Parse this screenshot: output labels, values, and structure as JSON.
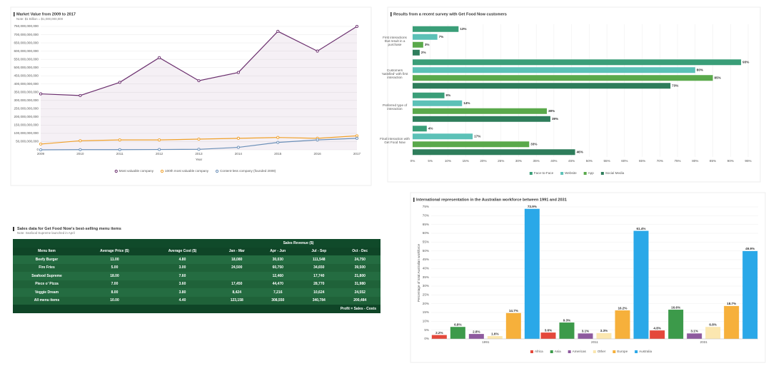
{
  "chart_data": [
    {
      "type": "line",
      "title": "Market Value from 2009 to 2017",
      "subtitle": "Note: $1 Billion = $1,000,000,000",
      "xlabel": "Year",
      "categories": [
        "2009",
        "2010",
        "2011",
        "2012",
        "2013",
        "2014",
        "2015",
        "2016",
        "2017"
      ],
      "series": [
        {
          "name": "Most valuable company",
          "color": "#6b2f6e",
          "values": [
            340000000000,
            330000000000,
            410000000000,
            560000000000,
            420000000000,
            470000000000,
            720000000000,
            600000000000,
            750000000000
          ]
        },
        {
          "name": "100th most valuable company",
          "color": "#f0a12b",
          "values": [
            35000000000,
            55000000000,
            60000000000,
            60000000000,
            65000000000,
            70000000000,
            75000000000,
            70000000000,
            85000000000
          ]
        },
        {
          "name": "Content-less company (founded 2009)",
          "color": "#6b8fb8",
          "values": [
            0,
            1000000000,
            1000000000,
            2000000000,
            3000000000,
            15000000000,
            45000000000,
            60000000000,
            70000000000
          ]
        }
      ],
      "ylim": [
        0,
        750000000000
      ],
      "yticks": [
        0,
        {
          "value": 50000000000,
          "label": "50,000,000,000"
        },
        {
          "value": 100000000000,
          "label": "100,000,000,000"
        },
        {
          "value": 150000000000,
          "label": "150,000,000,000"
        },
        {
          "value": 200000000000,
          "label": "200,000,000,000"
        },
        {
          "value": 250000000000,
          "label": "250,000,000,000"
        },
        {
          "value": 300000000000,
          "label": "300,000,000,000"
        },
        {
          "value": 350000000000,
          "label": "350,000,000,000"
        },
        {
          "value": 400000000000,
          "label": "400,000,000,000"
        },
        {
          "value": 450000000000,
          "label": "450,000,000,000"
        },
        {
          "value": 500000000000,
          "label": "500,000,000,000"
        },
        {
          "value": 550000000000,
          "label": "550,000,000,000"
        },
        {
          "value": 600000000000,
          "label": "600,000,000,000"
        },
        {
          "value": 650000000000,
          "label": "650,000,000,000"
        },
        {
          "value": 700000000000,
          "label": "700,000,000,000"
        },
        {
          "value": 750000000000,
          "label": "750,000,000,000"
        }
      ],
      "grid": true,
      "legend": "bottom"
    },
    {
      "type": "hbar",
      "title": "Results from a recent survey with Get Food Now customers",
      "categories": [
        "First interactions that result in a purchase",
        "Customers 'satisfied' with first interaction",
        "Preferred type of interaction",
        "Final interaction with Get Food Now"
      ],
      "series": [
        {
          "name": "Face-to-Face",
          "color": "#3a9e78",
          "values": [
            13,
            93,
            9,
            4
          ],
          "value_labels": [
            "13%",
            "93%",
            "9%",
            "4%"
          ]
        },
        {
          "name": "Website",
          "color": "#5cc1b7",
          "values": [
            7,
            80,
            14,
            17
          ],
          "value_labels": [
            "7%",
            "80%",
            "14%",
            "17%"
          ]
        },
        {
          "name": "App",
          "color": "#5aa94b",
          "values": [
            3,
            85,
            38,
            33
          ],
          "value_labels": [
            "3%",
            "85%",
            "38%",
            "33%"
          ]
        },
        {
          "name": "Social Media",
          "color": "#2e7d5b",
          "values": [
            2,
            73,
            39,
            46
          ],
          "value_labels": [
            "2%",
            "73%",
            "39%",
            "46%"
          ]
        }
      ],
      "xlim": [
        0,
        95
      ],
      "xticks": [
        {
          "value": 0,
          "label": "0%"
        },
        {
          "value": 5,
          "label": "5%"
        },
        {
          "value": 10,
          "label": "10%"
        },
        {
          "value": 15,
          "label": "15%"
        },
        {
          "value": 20,
          "label": "20%"
        },
        {
          "value": 25,
          "label": "25%"
        },
        {
          "value": 30,
          "label": "30%"
        },
        {
          "value": 35,
          "label": "35%"
        },
        {
          "value": 40,
          "label": "40%"
        },
        {
          "value": 45,
          "label": "45%"
        },
        {
          "value": 50,
          "label": "50%"
        },
        {
          "value": 55,
          "label": "55%"
        },
        {
          "value": 60,
          "label": "60%"
        },
        {
          "value": 65,
          "label": "65%"
        },
        {
          "value": 70,
          "label": "70%"
        },
        {
          "value": 75,
          "label": "75%"
        },
        {
          "value": 80,
          "label": "80%"
        },
        {
          "value": 85,
          "label": "85%"
        },
        {
          "value": 90,
          "label": "90%"
        },
        {
          "value": 95,
          "label": "95%"
        }
      ],
      "grid": true,
      "legend": "bottom"
    },
    {
      "type": "bar",
      "title": "International representation in the Australian workforce between 1991 and 2031",
      "ylabel": "Percentage of total Australian workforce",
      "categories": [
        "1991",
        "2011",
        "2031"
      ],
      "series": [
        {
          "name": "Africa",
          "color": "#e4483b",
          "values": [
            2.2,
            3.6,
            4.8
          ],
          "value_labels": [
            "2.2%",
            "3.6%",
            "4.8%"
          ]
        },
        {
          "name": "Asia",
          "color": "#3c9a4a",
          "values": [
            6.8,
            9.3,
            16.6
          ],
          "value_labels": [
            "6.8%",
            "9.3%",
            "16.6%"
          ]
        },
        {
          "name": "Americas",
          "color": "#8e5a9e",
          "values": [
            2.8,
            3.1,
            3.1
          ],
          "value_labels": [
            "2.8%",
            "3.1%",
            "3.1%"
          ]
        },
        {
          "name": "Other",
          "color": "#fbe7b0",
          "values": [
            1.6,
            3.3,
            6.8
          ],
          "value_labels": [
            "1.6%",
            "3.3%",
            "6.8%"
          ]
        },
        {
          "name": "Europe",
          "color": "#f6b03b",
          "values": [
            14.7,
            16.2,
            18.7
          ],
          "value_labels": [
            "14.7%",
            "16.2%",
            "18.7%"
          ]
        },
        {
          "name": "Australia",
          "color": "#2aa8e8",
          "values": [
            73.9,
            61.4,
            49.9
          ],
          "value_labels": [
            "73.9%",
            "61.4%",
            "49.9%"
          ]
        }
      ],
      "ylim": [
        0,
        75
      ],
      "yticks": [
        {
          "value": 0,
          "label": "0%"
        },
        {
          "value": 5,
          "label": "5%"
        },
        {
          "value": 10,
          "label": "10%"
        },
        {
          "value": 15,
          "label": "15%"
        },
        {
          "value": 20,
          "label": "20%"
        },
        {
          "value": 25,
          "label": "25%"
        },
        {
          "value": 30,
          "label": "30%"
        },
        {
          "value": 35,
          "label": "35%"
        },
        {
          "value": 40,
          "label": "40%"
        },
        {
          "value": 45,
          "label": "45%"
        },
        {
          "value": 50,
          "label": "50%"
        },
        {
          "value": 55,
          "label": "55%"
        },
        {
          "value": 60,
          "label": "60%"
        },
        {
          "value": 65,
          "label": "65%"
        },
        {
          "value": 70,
          "label": "70%"
        },
        {
          "value": 75,
          "label": "75%"
        }
      ],
      "grid": true,
      "legend": "bottom"
    }
  ],
  "table": {
    "title": "Sales data for Get Food Now's best-selling menu items",
    "note": "Note: Seafood Supreme launched in April",
    "group_header": "Sales Revenue ($)",
    "columns": [
      "Menu Item",
      "Average Price ($)",
      "Average Cost ($)",
      "Jan - Mar",
      "Apr - Jun",
      "Jul - Sep",
      "Oct - Dec"
    ],
    "rows": [
      [
        "Beefy Burger",
        "11.00",
        "4.80",
        "18,080",
        "30,030",
        "111,548",
        "24,750"
      ],
      [
        "Fire Fries",
        "5.00",
        "3.00",
        "24,500",
        "60,750",
        "34,650",
        "39,500"
      ],
      [
        "Seafood Supreme",
        "18.00",
        "7.60",
        null,
        "12,460",
        "17,740",
        "21,800"
      ],
      [
        "Piece o' Pizza",
        "7.00",
        "3.60",
        "17,450",
        "44,470",
        "28,770",
        "31,980"
      ],
      [
        "Veggie Dream",
        "8.00",
        "3.80",
        "8,424",
        "7,216",
        "10,624",
        "24,552"
      ],
      [
        "All menu items",
        "10.00",
        "4.40",
        "123,158",
        "308,550",
        "340,784",
        "200,484"
      ]
    ],
    "footer": "Profit = Sales - Costs"
  }
}
